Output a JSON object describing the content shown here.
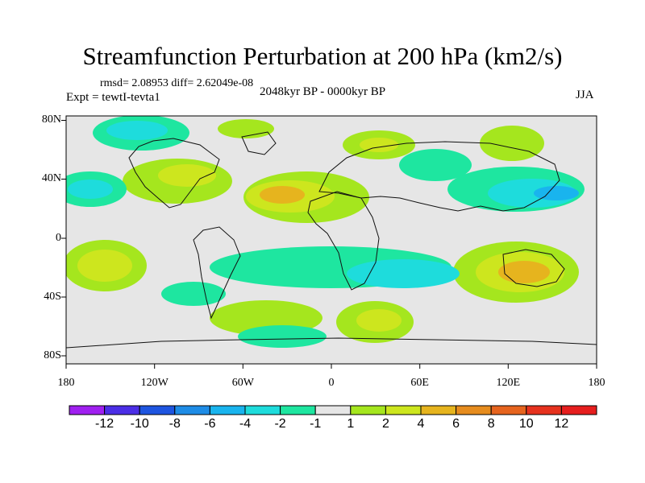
{
  "title": "Streamfunction Perturbation at 200 hPa (km2/s)",
  "stats_text": "rmsd= 2.08953 diff= 2.62049e-08",
  "experiment_text": "Expt = tewtI-tevta1",
  "period_text": "2048kyr BP - 0000kyr BP",
  "season_text": "JJA",
  "lat_labels": [
    "80N",
    "40N",
    "0",
    "40S",
    "80S"
  ],
  "lon_labels": [
    "180",
    "120W",
    "60W",
    "0",
    "60E",
    "120E",
    "180"
  ],
  "colorbar": {
    "labels": [
      "-12",
      "-10",
      "-8",
      "-6",
      "-4",
      "-2",
      "-1",
      "1",
      "2",
      "4",
      "6",
      "8",
      "10",
      "12"
    ],
    "colors": [
      "#a020f0",
      "#4b2ee6",
      "#1e55e0",
      "#1e8ce6",
      "#19b4ee",
      "#1edcdc",
      "#1ee6a0",
      "#e6e6e6",
      "#a5e61e",
      "#cde61e",
      "#e6b41e",
      "#e68c1e",
      "#e6641e",
      "#e6321e",
      "#e61e1e"
    ]
  },
  "field_colors": {
    "neutral": "#e6e6e6",
    "pos1": "#a5e61e",
    "pos2": "#cde61e",
    "pos3": "#e6b41e",
    "pos4": "#e68c1e",
    "neg1": "#1ee6a0",
    "neg2": "#1edcdc",
    "neg3": "#19b4ee",
    "neg4": "#1e8ce6"
  }
}
